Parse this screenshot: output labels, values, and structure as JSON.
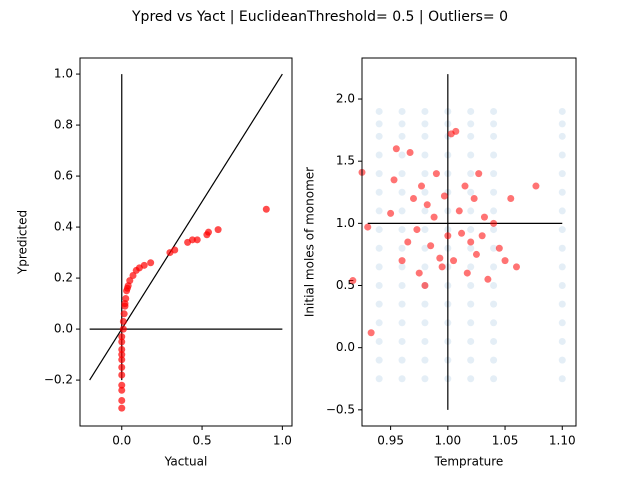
{
  "figure_title": "Ypred vs Yact | EuclideanThreshold= 0.5 | Outliers= 0",
  "chart_data": [
    {
      "type": "scatter",
      "xlabel": "Yactual",
      "ylabel": "Ypredicted",
      "xlim": [
        -0.26,
        1.06
      ],
      "ylim": [
        -0.38,
        1.063
      ],
      "xticks": [
        {
          "value": 0.0,
          "label": "0.0"
        },
        0.5,
        {
          "value": 1.0,
          "label": "1.0"
        }
      ],
      "yticks": [
        {
          "value": -0.2,
          "label": "−0.2"
        },
        {
          "value": 0.0,
          "label": "0.0"
        },
        0.2,
        0.4,
        0.6,
        0.8,
        {
          "value": 1.0,
          "label": "1.0"
        }
      ],
      "reference_lines": [
        {
          "color": "#000000",
          "x": [
            0,
            0
          ],
          "y": [
            -0.2,
            1.0
          ]
        },
        {
          "color": "#000000",
          "x": [
            -0.2,
            1.0
          ],
          "y": [
            0,
            0
          ]
        },
        {
          "color": "#000000",
          "x": [
            -0.2,
            1.0
          ],
          "y": [
            -0.2,
            1.0
          ]
        }
      ],
      "series": [
        {
          "color": "#ff0000",
          "alpha": 0.7,
          "x": [
            0,
            0,
            0,
            0,
            0,
            0,
            0,
            0,
            0,
            0,
            0,
            0.01,
            0.01,
            0.015,
            0.02,
            0.02,
            0.025,
            0.03,
            0.035,
            0.04,
            0.05,
            0.07,
            0.09,
            0.11,
            0.14,
            0.18,
            0.3,
            0.33,
            0.41,
            0.44,
            0.47,
            0.53,
            0.54,
            0.6,
            0.9
          ],
          "y": [
            -0.31,
            -0.28,
            -0.24,
            -0.22,
            -0.18,
            -0.15,
            -0.12,
            -0.1,
            -0.08,
            -0.05,
            -0.03,
            0.0,
            0.03,
            0.06,
            0.09,
            0.1,
            0.12,
            0.15,
            0.16,
            0.17,
            0.19,
            0.21,
            0.23,
            0.24,
            0.25,
            0.26,
            0.3,
            0.31,
            0.34,
            0.35,
            0.35,
            0.37,
            0.38,
            0.39,
            0.47
          ]
        }
      ]
    },
    {
      "type": "scatter",
      "xlabel": "Temprature",
      "ylabel": "Initial moles of monomer",
      "xlim": [
        0.925,
        1.112
      ],
      "ylim": [
        -0.63,
        2.33
      ],
      "xticks": [
        0.95,
        {
          "value": 1.0,
          "label": "1.00"
        },
        1.05,
        {
          "value": 1.1,
          "label": "1.10"
        }
      ],
      "yticks": [
        {
          "value": -0.5,
          "label": "−0.5"
        },
        {
          "value": 0.0,
          "label": "0.0"
        },
        0.5,
        {
          "value": 1.0,
          "label": "1.0"
        },
        1.5,
        {
          "value": 2.0,
          "label": "2.0"
        }
      ],
      "reference_lines": [
        {
          "color": "#000000",
          "x": [
            1.0,
            1.0
          ],
          "y": [
            -0.5,
            2.2
          ]
        },
        {
          "color": "#000000",
          "x": [
            0.93,
            1.1
          ],
          "y": [
            1.0,
            1.0
          ]
        }
      ],
      "series": [
        {
          "color": "#1f77b4",
          "alpha": 0.12,
          "x": [
            0.94,
            0.96,
            0.98,
            1.0,
            1.02,
            1.04,
            1.1,
            0.94,
            0.96,
            0.98,
            1.0,
            1.02,
            1.04,
            1.1,
            0.94,
            0.96,
            0.98,
            1.0,
            1.02,
            1.04,
            1.1,
            0.94,
            0.96,
            0.98,
            1.0,
            1.02,
            1.04,
            1.1,
            0.94,
            0.96,
            0.98,
            1.0,
            1.02,
            1.04,
            1.1,
            0.94,
            0.96,
            0.98,
            1.0,
            1.02,
            1.04,
            1.1,
            0.94,
            0.96,
            0.98,
            1.0,
            1.02,
            1.04,
            1.1,
            0.94,
            0.96,
            0.98,
            1.0,
            1.02,
            1.04,
            1.1,
            0.94,
            0.96,
            0.98,
            1.0,
            1.02,
            1.04,
            1.1,
            0.94,
            0.96,
            0.98,
            1.0,
            1.02,
            1.04,
            1.1,
            0.94,
            0.96,
            0.98,
            1.0,
            1.02,
            1.04,
            1.1,
            0.94,
            0.96,
            0.98,
            1.0,
            1.02,
            1.04,
            1.1,
            0.94,
            0.96,
            0.98,
            1.0,
            1.02,
            1.04,
            1.1,
            0.94,
            0.96,
            0.98,
            1.0,
            1.02,
            1.04,
            1.1,
            0.94,
            0.96,
            0.98,
            1.0,
            1.02,
            1.04,
            1.1,
            0.94,
            0.96,
            0.98,
            1.0,
            1.02,
            1.04,
            1.1
          ],
          "y": [
            -0.25,
            -0.25,
            -0.25,
            -0.25,
            -0.25,
            -0.25,
            -0.25,
            -0.1,
            -0.1,
            -0.1,
            -0.1,
            -0.1,
            -0.1,
            -0.1,
            0.05,
            0.05,
            0.05,
            0.05,
            0.05,
            0.05,
            0.05,
            0.2,
            0.2,
            0.2,
            0.2,
            0.2,
            0.2,
            0.2,
            0.35,
            0.35,
            0.35,
            0.35,
            0.35,
            0.35,
            0.35,
            0.5,
            0.5,
            0.5,
            0.5,
            0.5,
            0.5,
            0.5,
            0.65,
            0.65,
            0.65,
            0.65,
            0.65,
            0.65,
            0.65,
            0.8,
            0.8,
            0.8,
            0.8,
            0.8,
            0.8,
            0.8,
            0.95,
            0.95,
            0.95,
            0.95,
            0.95,
            0.95,
            0.95,
            1.1,
            1.1,
            1.1,
            1.1,
            1.1,
            1.1,
            1.1,
            1.25,
            1.25,
            1.25,
            1.25,
            1.25,
            1.25,
            1.25,
            1.4,
            1.4,
            1.4,
            1.4,
            1.4,
            1.4,
            1.4,
            1.55,
            1.55,
            1.55,
            1.55,
            1.55,
            1.55,
            1.55,
            1.7,
            1.7,
            1.7,
            1.7,
            1.7,
            1.7,
            1.7,
            1.8,
            1.8,
            1.8,
            1.8,
            1.8,
            1.8,
            1.8,
            1.9,
            1.9,
            1.9,
            1.9,
            1.9,
            1.9,
            1.9
          ]
        },
        {
          "color": "#ff0000",
          "alpha": 0.55,
          "x": [
            0.917,
            0.925,
            0.93,
            0.933,
            0.95,
            0.953,
            0.955,
            0.96,
            0.965,
            0.967,
            0.97,
            0.973,
            0.975,
            0.977,
            0.98,
            0.982,
            0.985,
            0.988,
            0.99,
            0.993,
            0.995,
            0.997,
            1.0,
            1.003,
            1.005,
            1.007,
            1.01,
            1.012,
            1.015,
            1.017,
            1.02,
            1.023,
            1.025,
            1.027,
            1.03,
            1.032,
            1.035,
            1.04,
            1.045,
            1.05,
            1.055,
            1.06,
            1.077
          ],
          "y": [
            0.54,
            1.41,
            0.97,
            0.12,
            1.08,
            1.35,
            1.6,
            0.7,
            0.85,
            1.57,
            1.2,
            0.95,
            0.6,
            1.3,
            0.5,
            1.15,
            0.82,
            1.05,
            1.4,
            0.72,
            0.65,
            1.22,
            0.9,
            1.72,
            0.7,
            1.74,
            1.1,
            0.92,
            1.3,
            0.6,
            0.85,
            1.2,
            0.75,
            1.4,
            0.9,
            1.05,
            0.55,
            1.0,
            0.8,
            0.7,
            1.2,
            0.65,
            1.3
          ]
        }
      ]
    }
  ]
}
